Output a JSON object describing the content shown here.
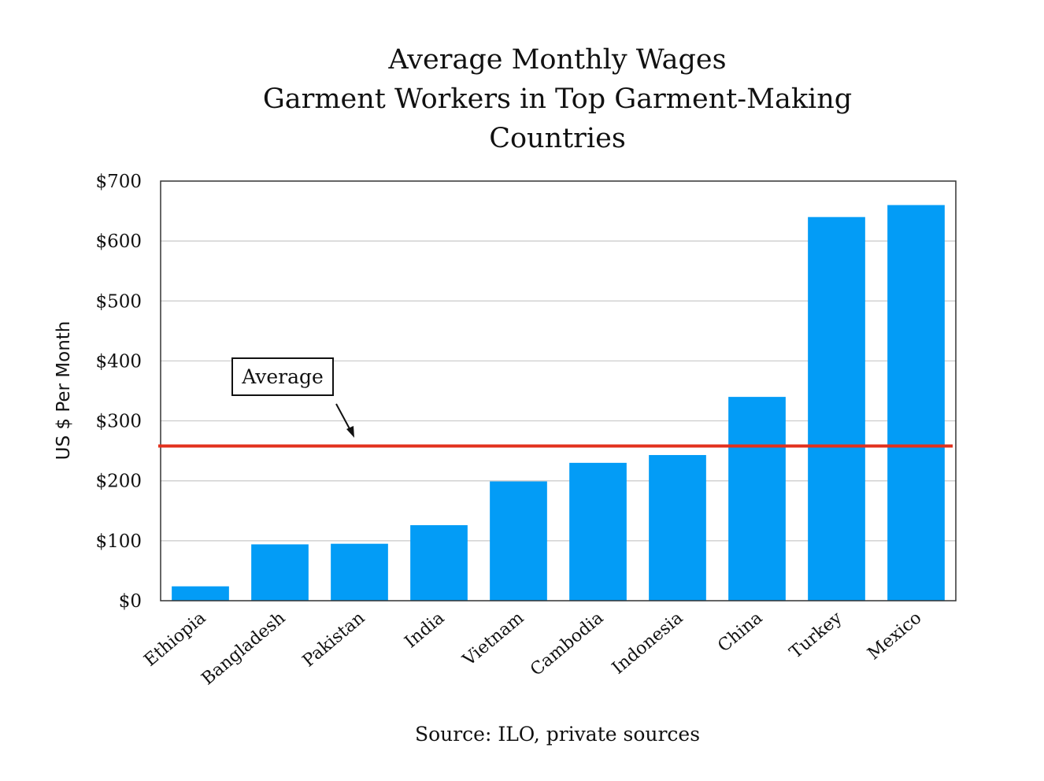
{
  "chart_data": {
    "type": "bar",
    "title": [
      "Average Monthly Wages",
      "Garment Workers in Top Garment-Making",
      "Countries"
    ],
    "ylabel": "US $ Per Month",
    "xlabel": "",
    "source": "Source: ILO, private sources",
    "categories": [
      "Ethiopia",
      "Bangladesh",
      "Pakistan",
      "India",
      "Vietnam",
      "Cambodia",
      "Indonesia",
      "China",
      "Turkey",
      "Mexico"
    ],
    "values": [
      24,
      94,
      95,
      126,
      199,
      230,
      243,
      340,
      640,
      660
    ],
    "ylim": [
      0,
      700
    ],
    "yticks": [
      0,
      100,
      200,
      300,
      400,
      500,
      600,
      700
    ],
    "ytick_labels": [
      "$0",
      "$100",
      "$200",
      "$300",
      "$400",
      "$500",
      "$600",
      "$700"
    ],
    "grid": true,
    "legend": "none",
    "reference_line": {
      "label": "Average",
      "value": 258,
      "color": "#e3311d"
    },
    "colors": {
      "bar": "#039cf6",
      "grid": "#c9c9c9",
      "axis": "#333333",
      "text": "#111111"
    }
  }
}
